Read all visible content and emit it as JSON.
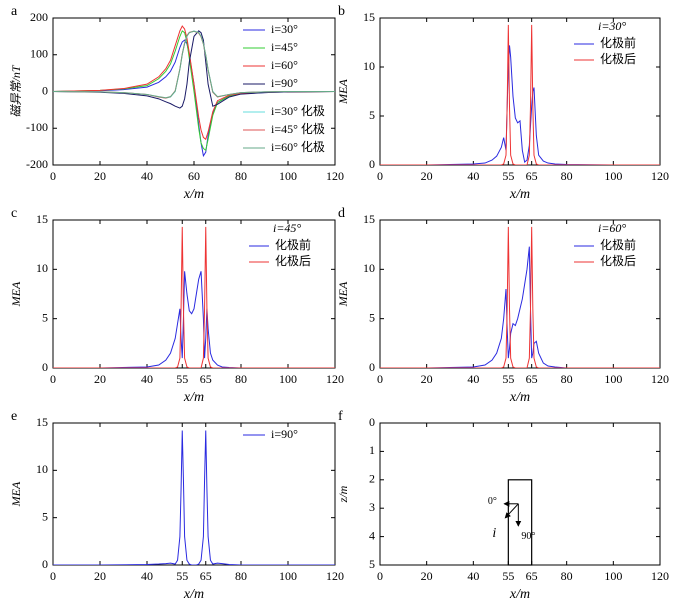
{
  "chart_data": [
    {
      "type": "line",
      "panel_label": "a",
      "xlabel": "x/m",
      "ylabel": "磁异常/nT",
      "xlim": [
        0,
        120
      ],
      "xticks": [
        0,
        20,
        40,
        60,
        80,
        100,
        120
      ],
      "ylim": [
        -200,
        200
      ],
      "yticks": [
        -200,
        -100,
        0,
        100,
        200
      ],
      "legend": "upper right",
      "x": [
        0,
        20,
        30,
        40,
        45,
        48,
        50,
        52,
        54,
        55,
        56,
        57,
        58,
        60,
        62,
        63,
        64,
        65,
        66,
        68,
        70,
        75,
        80,
        90,
        100,
        120
      ],
      "series": [
        {
          "name": "i=30°",
          "color": "#2a2ae0",
          "values": [
            0,
            2,
            5,
            12,
            25,
            40,
            55,
            80,
            120,
            135,
            140,
            130,
            100,
            20,
            -90,
            -140,
            -175,
            -165,
            -120,
            -60,
            -30,
            -12,
            -6,
            -3,
            -1,
            0
          ]
        },
        {
          "name": "i=45°",
          "color": "#33cc33",
          "values": [
            0,
            3,
            7,
            16,
            35,
            55,
            75,
            110,
            150,
            165,
            160,
            135,
            90,
            0,
            -100,
            -140,
            -155,
            -160,
            -130,
            -65,
            -30,
            -12,
            -6,
            -2,
            -1,
            0
          ]
        },
        {
          "name": "i=60°",
          "color": "#ee3333",
          "values": [
            0,
            3,
            8,
            20,
            40,
            62,
            85,
            125,
            165,
            178,
            170,
            145,
            105,
            20,
            -70,
            -105,
            -125,
            -130,
            -110,
            -55,
            -25,
            -10,
            -5,
            -2,
            -1,
            0
          ]
        },
        {
          "name": "i=90°",
          "color": "#1a1a66",
          "values": [
            0,
            -2,
            -5,
            -12,
            -20,
            -28,
            -33,
            -40,
            -45,
            -40,
            -20,
            20,
            80,
            150,
            165,
            160,
            140,
            80,
            20,
            -40,
            -35,
            -15,
            -7,
            -3,
            -1,
            0
          ]
        },
        {
          "name": "i=30° 化极",
          "color": "#66dddd",
          "values": [
            0,
            -1,
            -3,
            -8,
            -15,
            -18,
            -15,
            0,
            60,
            100,
            130,
            150,
            160,
            165,
            160,
            150,
            130,
            100,
            60,
            0,
            -15,
            -8,
            -3,
            -1,
            0,
            0
          ]
        },
        {
          "name": "i=45° 化极",
          "color": "#dd5555",
          "values": [
            0,
            -1,
            -3,
            -8,
            -15,
            -18,
            -14,
            2,
            62,
            102,
            132,
            152,
            161,
            164,
            159,
            149,
            129,
            98,
            58,
            -2,
            -15,
            -8,
            -3,
            -1,
            0,
            0
          ]
        },
        {
          "name": "i=60° 化极",
          "color": "#66aa88",
          "values": [
            0,
            -1,
            -3,
            -8,
            -14,
            -17,
            -14,
            1,
            61,
            101,
            131,
            151,
            160,
            164,
            160,
            150,
            130,
            99,
            59,
            -1,
            -14,
            -8,
            -3,
            -1,
            0,
            0
          ]
        }
      ]
    },
    {
      "type": "line",
      "panel_label": "b",
      "xlabel": "x/m",
      "ylabel": "MEA",
      "legend_title": "i=30°",
      "xlim": [
        0,
        120
      ],
      "xticks": [
        0,
        20,
        40,
        55,
        65,
        80,
        100,
        120
      ],
      "ylim": [
        0,
        15
      ],
      "yticks": [
        0,
        5,
        10,
        15
      ],
      "legend": "upper right",
      "x": [
        0,
        20,
        40,
        45,
        48,
        50,
        52,
        53,
        54,
        54.5,
        55,
        55.5,
        56,
        57,
        58,
        59,
        60,
        61,
        62,
        63,
        64,
        64.5,
        65,
        65.5,
        66,
        67,
        68,
        70,
        72,
        75,
        80,
        100,
        120
      ],
      "series": [
        {
          "name": "化极前",
          "color": "#2a2ae0",
          "values": [
            0,
            0,
            0.1,
            0.2,
            0.5,
            0.9,
            1.8,
            2.8,
            1.5,
            6,
            10,
            12.2,
            11,
            7,
            4.8,
            4.3,
            4.5,
            1.5,
            0.3,
            0.5,
            2,
            4,
            6,
            7.5,
            7.9,
            3,
            1,
            0.4,
            0.2,
            0.1,
            0.05,
            0,
            0
          ]
        },
        {
          "name": "化极后",
          "color": "#ee3333",
          "values": [
            0,
            0,
            0,
            0,
            0,
            0,
            0,
            0.1,
            1,
            6,
            14.3,
            6,
            1,
            0.1,
            0,
            0,
            0,
            0,
            0,
            0,
            1,
            6,
            14.3,
            6,
            1,
            0.1,
            0,
            0,
            0,
            0,
            0,
            0,
            0
          ]
        }
      ]
    },
    {
      "type": "line",
      "panel_label": "c",
      "xlabel": "x/m",
      "ylabel": "MEA",
      "legend_title": "i=45°",
      "xlim": [
        0,
        120
      ],
      "xticks": [
        0,
        20,
        40,
        55,
        65,
        80,
        100,
        120
      ],
      "ylim": [
        0,
        15
      ],
      "yticks": [
        0,
        5,
        10,
        15
      ],
      "legend": "upper right",
      "x": [
        0,
        20,
        40,
        45,
        48,
        50,
        52,
        53,
        54,
        54.5,
        55,
        55.5,
        56,
        57,
        58,
        59,
        60,
        61,
        62,
        63,
        64,
        64.5,
        65,
        65.5,
        66,
        67,
        68,
        70,
        72,
        75,
        80,
        100,
        120
      ],
      "series": [
        {
          "name": "化极前",
          "color": "#2a2ae0",
          "values": [
            0,
            0,
            0.1,
            0.3,
            0.8,
            1.5,
            3,
            4.5,
            6,
            3,
            1,
            5,
            9.8,
            7.5,
            5.8,
            5.5,
            6,
            7.5,
            9,
            9.8,
            5,
            1,
            3,
            6,
            4,
            1.5,
            0.8,
            0.3,
            0.1,
            0.05,
            0,
            0,
            0
          ]
        },
        {
          "name": "化极后",
          "color": "#ee3333",
          "values": [
            0,
            0,
            0,
            0,
            0,
            0,
            0,
            0.1,
            1,
            6,
            14.3,
            6,
            1,
            0.1,
            0,
            0,
            0,
            0,
            0,
            0,
            1,
            6,
            14.3,
            6,
            1,
            0.1,
            0,
            0,
            0,
            0,
            0,
            0,
            0
          ]
        }
      ]
    },
    {
      "type": "line",
      "panel_label": "d",
      "xlabel": "x/m",
      "ylabel": "MEA",
      "legend_title": "i=60°",
      "xlim": [
        0,
        120
      ],
      "xticks": [
        0,
        20,
        40,
        55,
        65,
        80,
        100,
        120
      ],
      "ylim": [
        0,
        15
      ],
      "yticks": [
        0,
        5,
        10,
        15
      ],
      "legend": "upper right",
      "x": [
        0,
        20,
        40,
        45,
        48,
        50,
        52,
        53,
        54,
        54.5,
        55,
        55.5,
        56,
        57,
        58,
        59,
        60,
        61,
        62,
        63,
        64,
        64.5,
        65,
        65.5,
        66,
        67,
        68,
        70,
        72,
        75,
        80,
        100,
        120
      ],
      "series": [
        {
          "name": "化极前",
          "color": "#2a2ae0",
          "values": [
            0,
            0,
            0.1,
            0.3,
            0.8,
            1.5,
            3,
            5,
            8,
            4,
            1,
            2,
            3.5,
            4.5,
            4.3,
            5,
            6,
            7,
            8.5,
            10,
            12.3,
            6,
            1,
            1.5,
            2.5,
            2.7,
            1.5,
            0.5,
            0.2,
            0.1,
            0,
            0,
            0
          ]
        },
        {
          "name": "化极后",
          "color": "#ee3333",
          "values": [
            0,
            0,
            0,
            0,
            0,
            0,
            0,
            0.1,
            1,
            6,
            14.3,
            6,
            1,
            0.1,
            0,
            0,
            0,
            0,
            0,
            0,
            1,
            6,
            14.3,
            6,
            1,
            0.1,
            0,
            0,
            0,
            0,
            0,
            0,
            0
          ]
        }
      ]
    },
    {
      "type": "line",
      "panel_label": "e",
      "xlabel": "x/m",
      "ylabel": "MEA",
      "xlim": [
        0,
        120
      ],
      "xticks": [
        0,
        20,
        40,
        55,
        65,
        80,
        100,
        120
      ],
      "ylim": [
        0,
        15
      ],
      "yticks": [
        0,
        5,
        10,
        15
      ],
      "legend": "upper right",
      "x": [
        0,
        20,
        40,
        45,
        48,
        50,
        52,
        53,
        54,
        54.5,
        55,
        55.5,
        56,
        57,
        58,
        59,
        60,
        61,
        62,
        63,
        64,
        64.5,
        65,
        65.5,
        66,
        67,
        68,
        70,
        72,
        75,
        80,
        100,
        120
      ],
      "series": [
        {
          "name": "i=90°",
          "color": "#2a2ae0",
          "values": [
            0,
            0,
            0.05,
            0.1,
            0.15,
            0.2,
            0.1,
            0.5,
            3,
            8,
            14.2,
            9,
            3,
            0.5,
            0.1,
            0,
            0,
            0,
            0.1,
            0.5,
            3,
            9,
            14.2,
            8,
            3,
            0.5,
            0.1,
            0.2,
            0.15,
            0.05,
            0,
            0,
            0
          ]
        }
      ]
    },
    {
      "type": "model",
      "panel_label": "f",
      "xlabel": "x/m",
      "ylabel": "z/m",
      "xlim": [
        0,
        120
      ],
      "xticks": [
        0,
        20,
        40,
        55,
        65,
        80,
        100,
        120
      ],
      "ylim": [
        5,
        0
      ],
      "yticks": [
        0,
        1,
        2,
        3,
        4,
        5
      ],
      "prism": {
        "x": [
          55,
          65
        ],
        "z": [
          2,
          5
        ]
      },
      "annotations": [
        "0°",
        "i",
        "90°"
      ]
    }
  ]
}
